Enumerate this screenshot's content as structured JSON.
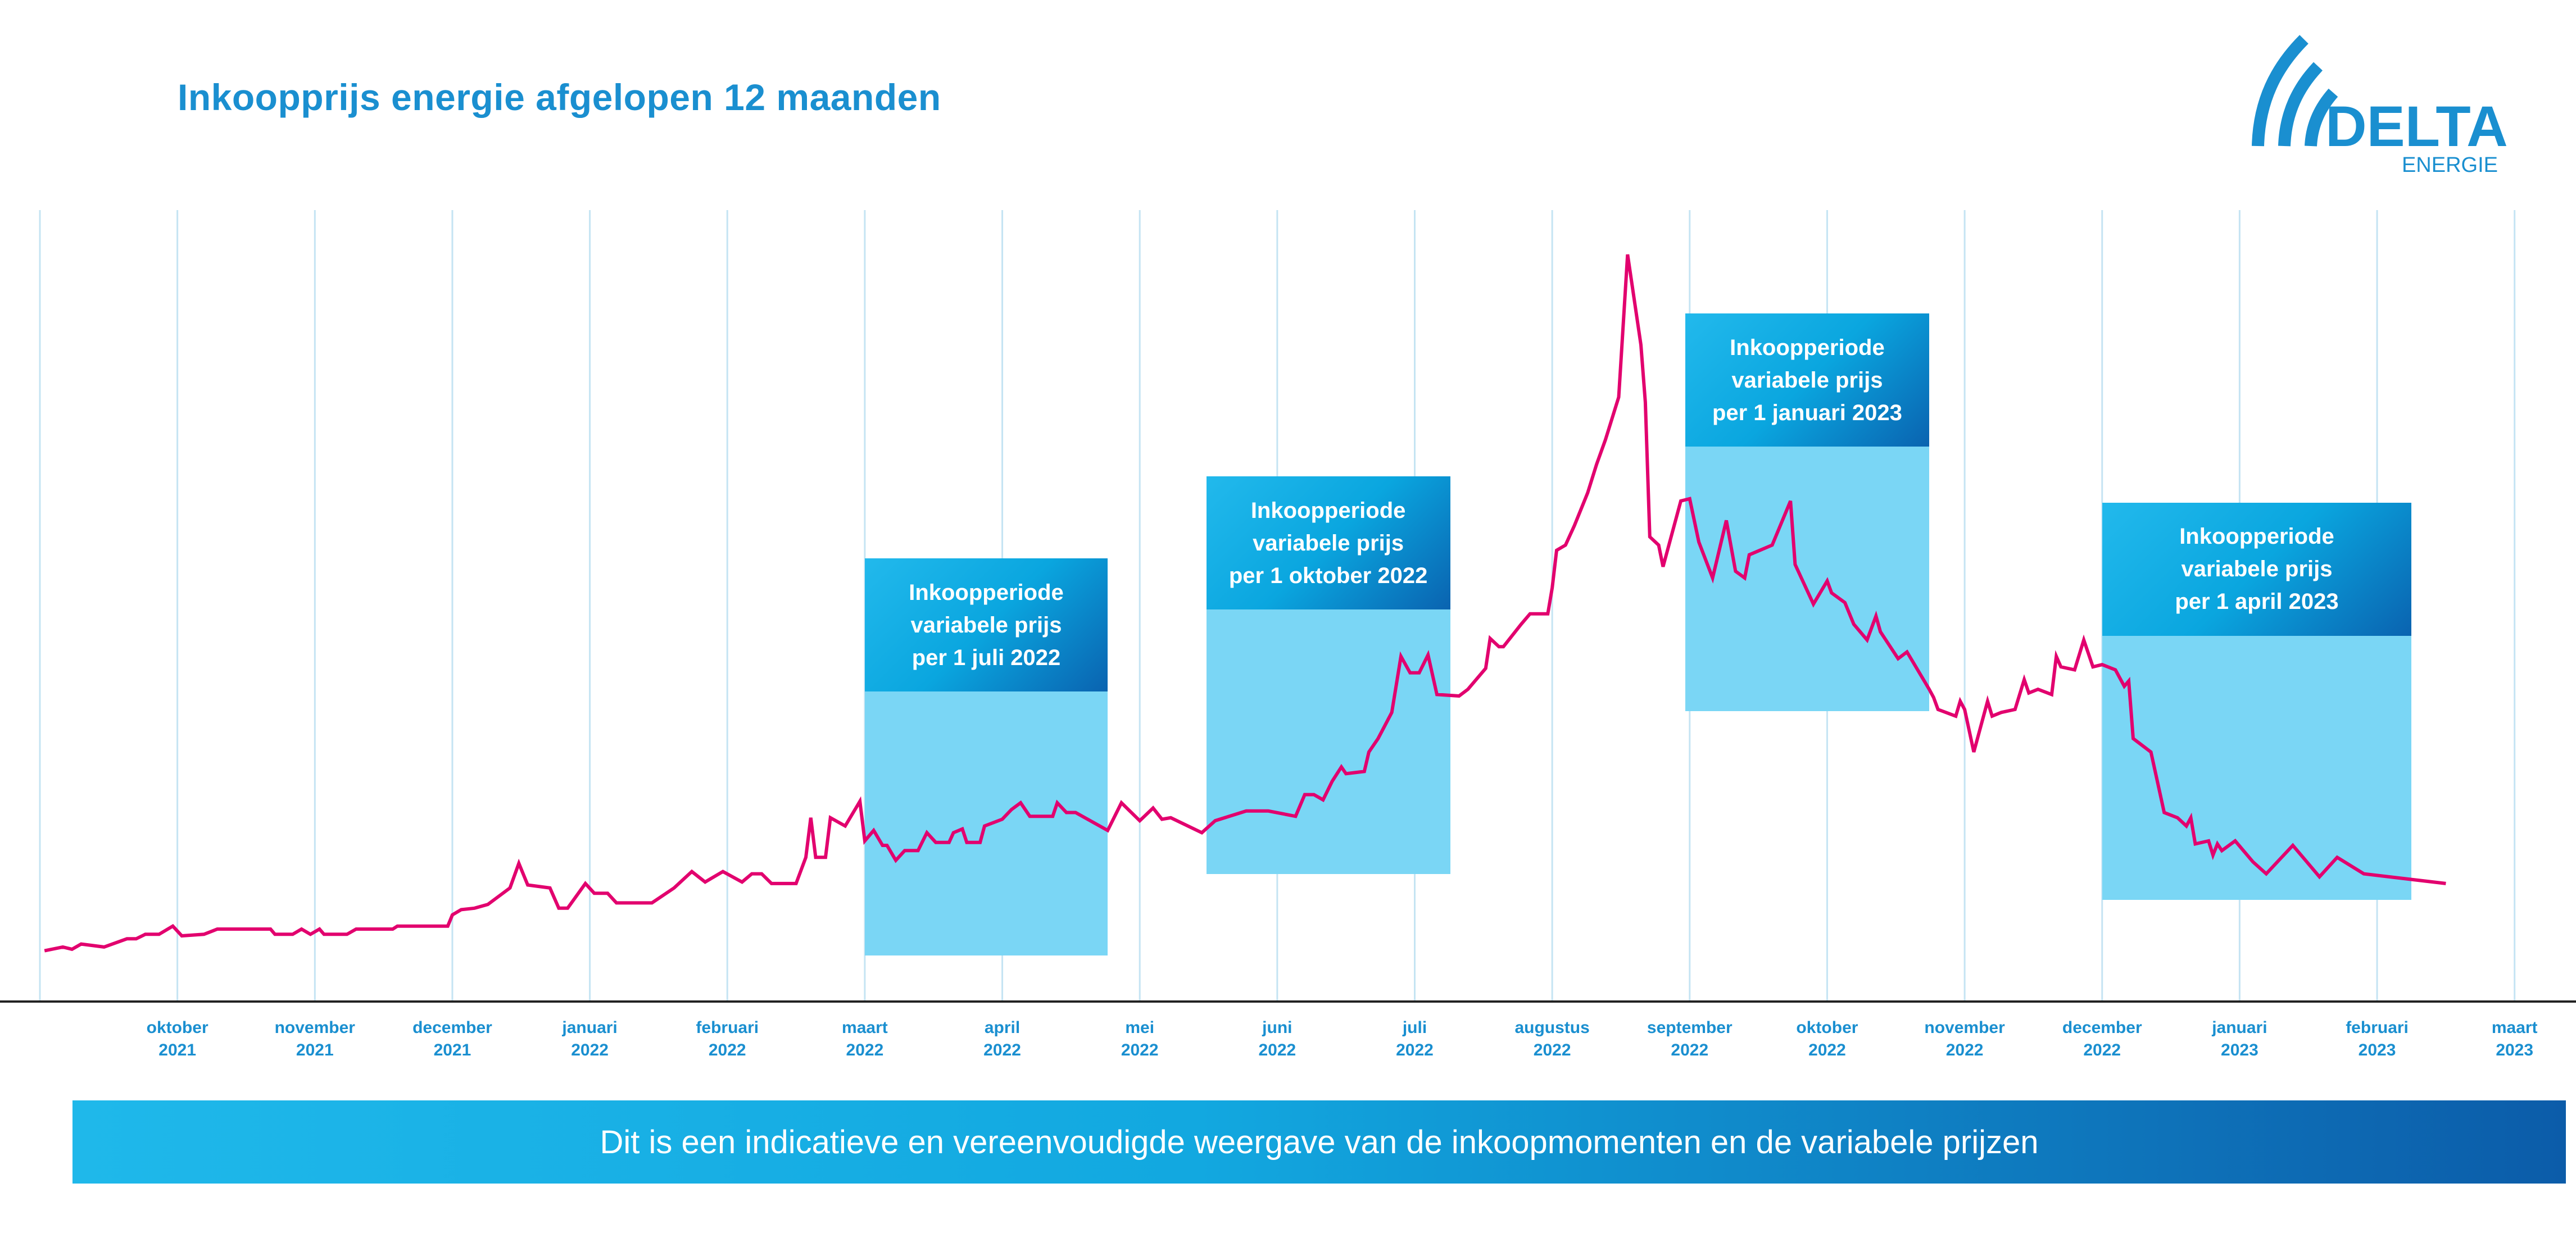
{
  "title": "Inkoopprijs energie afgelopen 12 maanden",
  "logo": {
    "brand": "DELTA",
    "sub": "ENERGIE",
    "color": "#1a8fd0"
  },
  "banner": "Dit is een indicatieve en vereenvoudigde weergave van de inkoopmomenten en de variabele prijzen",
  "chart_data": {
    "type": "line",
    "title": "Inkoopprijs energie afgelopen 12 maanden",
    "xlabel": "",
    "ylabel": "",
    "y_axis_visible": false,
    "ylim": [
      0,
      100
    ],
    "xlim": [
      "2021-09-01",
      "2023-03-01"
    ],
    "grid": "vertical monthly",
    "line_color": "#e2006e",
    "x_ticks": [
      {
        "date": "2021-10-01",
        "month": "oktober",
        "year": "2021"
      },
      {
        "date": "2021-11-01",
        "month": "november",
        "year": "2021"
      },
      {
        "date": "2021-12-01",
        "month": "december",
        "year": "2021"
      },
      {
        "date": "2022-01-01",
        "month": "januari",
        "year": "2022"
      },
      {
        "date": "2022-02-01",
        "month": "februari",
        "year": "2022"
      },
      {
        "date": "2022-03-01",
        "month": "maart",
        "year": "2022"
      },
      {
        "date": "2022-04-01",
        "month": "april",
        "year": "2022"
      },
      {
        "date": "2022-05-01",
        "month": "mei",
        "year": "2022"
      },
      {
        "date": "2022-06-01",
        "month": "juni",
        "year": "2022"
      },
      {
        "date": "2022-07-01",
        "month": "juli",
        "year": "2022"
      },
      {
        "date": "2022-08-01",
        "month": "augustus",
        "year": "2022"
      },
      {
        "date": "2022-09-01",
        "month": "september",
        "year": "2022"
      },
      {
        "date": "2022-10-01",
        "month": "oktober",
        "year": "2022"
      },
      {
        "date": "2022-11-01",
        "month": "november",
        "year": "2022"
      },
      {
        "date": "2022-12-01",
        "month": "december",
        "year": "2022"
      },
      {
        "date": "2023-01-01",
        "month": "januari",
        "year": "2023"
      },
      {
        "date": "2023-02-01",
        "month": "februari",
        "year": "2023"
      },
      {
        "date": "2023-03-01",
        "month": "maart",
        "year": "2023"
      }
    ],
    "series": [
      {
        "points": [
          [
            "2021-09-02",
            6.8
          ],
          [
            "2021-09-06",
            7.3
          ],
          [
            "2021-09-08",
            7.0
          ],
          [
            "2021-09-10",
            7.7
          ],
          [
            "2021-09-15",
            7.3
          ],
          [
            "2021-09-20",
            8.4
          ],
          [
            "2021-09-22",
            8.4
          ],
          [
            "2021-09-24",
            9.0
          ],
          [
            "2021-09-27",
            9.0
          ],
          [
            "2021-09-30",
            10.1
          ],
          [
            "2021-10-02",
            8.8
          ],
          [
            "2021-10-07",
            9.0
          ],
          [
            "2021-10-10",
            9.7
          ],
          [
            "2021-10-22",
            9.7
          ],
          [
            "2021-10-23",
            9.0
          ],
          [
            "2021-10-27",
            9.0
          ],
          [
            "2021-10-29",
            9.7
          ],
          [
            "2021-10-31",
            9.0
          ],
          [
            "2021-11-02",
            9.7
          ],
          [
            "2021-11-03",
            9.0
          ],
          [
            "2021-11-08",
            9.0
          ],
          [
            "2021-11-10",
            9.7
          ],
          [
            "2021-11-18",
            9.7
          ],
          [
            "2021-11-19",
            10.1
          ],
          [
            "2021-11-30",
            10.1
          ],
          [
            "2021-12-01",
            11.6
          ],
          [
            "2021-12-03",
            12.3
          ],
          [
            "2021-12-06",
            12.5
          ],
          [
            "2021-12-09",
            13.0
          ],
          [
            "2021-12-14",
            15.2
          ],
          [
            "2021-12-16",
            18.5
          ],
          [
            "2021-12-18",
            15.6
          ],
          [
            "2021-12-23",
            15.2
          ],
          [
            "2021-12-25",
            12.5
          ],
          [
            "2021-12-27",
            12.5
          ],
          [
            "2021-12-31",
            15.8
          ],
          [
            "2022-01-02",
            14.5
          ],
          [
            "2022-01-05",
            14.5
          ],
          [
            "2022-01-07",
            13.2
          ],
          [
            "2022-01-15",
            13.2
          ],
          [
            "2022-01-20",
            15.2
          ],
          [
            "2022-01-24",
            17.4
          ],
          [
            "2022-01-27",
            16.0
          ],
          [
            "2022-01-31",
            17.4
          ],
          [
            "2022-02-04",
            16.0
          ],
          [
            "2022-02-06",
            17.1
          ],
          [
            "2022-02-08",
            17.1
          ],
          [
            "2022-02-10",
            15.8
          ],
          [
            "2022-02-15",
            15.8
          ],
          [
            "2022-02-17",
            19.3
          ],
          [
            "2022-02-18",
            24.6
          ],
          [
            "2022-02-19",
            19.3
          ],
          [
            "2022-02-21",
            19.3
          ],
          [
            "2022-02-22",
            24.6
          ],
          [
            "2022-02-25",
            23.5
          ],
          [
            "2022-02-28",
            26.8
          ],
          [
            "2022-03-01",
            21.5
          ],
          [
            "2022-03-03",
            22.9
          ],
          [
            "2022-03-05",
            20.9
          ],
          [
            "2022-03-06",
            20.9
          ],
          [
            "2022-03-08",
            18.9
          ],
          [
            "2022-03-10",
            20.2
          ],
          [
            "2022-03-13",
            20.2
          ],
          [
            "2022-03-15",
            22.6
          ],
          [
            "2022-03-17",
            21.3
          ],
          [
            "2022-03-20",
            21.3
          ],
          [
            "2022-03-21",
            22.6
          ],
          [
            "2022-03-23",
            23.1
          ],
          [
            "2022-03-24",
            21.3
          ],
          [
            "2022-03-27",
            21.3
          ],
          [
            "2022-03-28",
            23.5
          ],
          [
            "2022-04-01",
            24.4
          ],
          [
            "2022-04-03",
            25.7
          ],
          [
            "2022-04-05",
            26.6
          ],
          [
            "2022-04-07",
            24.8
          ],
          [
            "2022-04-12",
            24.8
          ],
          [
            "2022-04-13",
            26.6
          ],
          [
            "2022-04-15",
            25.3
          ],
          [
            "2022-04-17",
            25.3
          ],
          [
            "2022-04-24",
            22.9
          ],
          [
            "2022-04-27",
            26.6
          ],
          [
            "2022-05-01",
            24.2
          ],
          [
            "2022-05-04",
            25.9
          ],
          [
            "2022-05-06",
            24.4
          ],
          [
            "2022-05-08",
            24.6
          ],
          [
            "2022-05-15",
            22.6
          ],
          [
            "2022-05-18",
            24.2
          ],
          [
            "2022-05-25",
            25.5
          ],
          [
            "2022-05-30",
            25.5
          ],
          [
            "2022-06-05",
            24.8
          ],
          [
            "2022-06-07",
            27.7
          ],
          [
            "2022-06-09",
            27.7
          ],
          [
            "2022-06-11",
            27.0
          ],
          [
            "2022-06-13",
            29.5
          ],
          [
            "2022-06-15",
            31.4
          ],
          [
            "2022-06-16",
            30.5
          ],
          [
            "2022-06-20",
            30.8
          ],
          [
            "2022-06-21",
            33.4
          ],
          [
            "2022-06-23",
            35.2
          ],
          [
            "2022-06-26",
            38.7
          ],
          [
            "2022-06-28",
            46.2
          ],
          [
            "2022-06-30",
            44.0
          ],
          [
            "2022-07-02",
            44.0
          ],
          [
            "2022-07-04",
            46.4
          ],
          [
            "2022-07-06",
            41.1
          ],
          [
            "2022-07-11",
            40.9
          ],
          [
            "2022-07-13",
            41.8
          ],
          [
            "2022-07-17",
            44.6
          ],
          [
            "2022-07-18",
            48.6
          ],
          [
            "2022-07-20",
            47.5
          ],
          [
            "2022-07-21",
            47.5
          ],
          [
            "2022-07-25",
            50.5
          ],
          [
            "2022-07-27",
            51.9
          ],
          [
            "2022-07-31",
            51.9
          ],
          [
            "2022-08-01",
            55.4
          ],
          [
            "2022-08-02",
            60.4
          ],
          [
            "2022-08-04",
            61.1
          ],
          [
            "2022-08-06",
            63.7
          ],
          [
            "2022-08-09",
            68.1
          ],
          [
            "2022-08-11",
            71.9
          ],
          [
            "2022-08-13",
            75.2
          ],
          [
            "2022-08-16",
            80.9
          ],
          [
            "2022-08-18",
            100
          ],
          [
            "2022-08-21",
            87.9
          ],
          [
            "2022-08-22",
            80.2
          ],
          [
            "2022-08-23",
            62.2
          ],
          [
            "2022-08-25",
            61.1
          ],
          [
            "2022-08-26",
            58.2
          ],
          [
            "2022-08-30",
            67.0
          ],
          [
            "2022-09-01",
            67.3
          ],
          [
            "2022-09-03",
            61.5
          ],
          [
            "2022-09-06",
            56.7
          ],
          [
            "2022-09-09",
            64.4
          ],
          [
            "2022-09-11",
            57.6
          ],
          [
            "2022-09-13",
            56.7
          ],
          [
            "2022-09-14",
            59.8
          ],
          [
            "2022-09-19",
            61.1
          ],
          [
            "2022-09-23",
            67.0
          ],
          [
            "2022-09-24",
            58.5
          ],
          [
            "2022-09-28",
            53.2
          ],
          [
            "2022-10-01",
            56.3
          ],
          [
            "2022-10-02",
            54.7
          ],
          [
            "2022-10-05",
            53.4
          ],
          [
            "2022-10-07",
            50.5
          ],
          [
            "2022-10-10",
            48.4
          ],
          [
            "2022-10-12",
            51.6
          ],
          [
            "2022-10-13",
            49.5
          ],
          [
            "2022-10-17",
            45.9
          ],
          [
            "2022-10-19",
            46.8
          ],
          [
            "2022-10-24",
            41.8
          ],
          [
            "2022-10-25",
            40.7
          ],
          [
            "2022-10-26",
            39.1
          ],
          [
            "2022-10-30",
            38.2
          ],
          [
            "2022-10-31",
            40.2
          ],
          [
            "2022-11-01",
            39.1
          ],
          [
            "2022-11-03",
            33.4
          ],
          [
            "2022-11-06",
            40.2
          ],
          [
            "2022-11-07",
            38.2
          ],
          [
            "2022-11-09",
            38.7
          ],
          [
            "2022-11-12",
            39.1
          ],
          [
            "2022-11-14",
            43.1
          ],
          [
            "2022-11-15",
            41.3
          ],
          [
            "2022-11-17",
            41.8
          ],
          [
            "2022-11-20",
            41.1
          ],
          [
            "2022-11-21",
            46.2
          ],
          [
            "2022-11-22",
            44.8
          ],
          [
            "2022-11-25",
            44.4
          ],
          [
            "2022-11-27",
            48.4
          ],
          [
            "2022-11-29",
            44.8
          ],
          [
            "2022-12-01",
            45.1
          ],
          [
            "2022-12-04",
            44.4
          ],
          [
            "2022-12-06",
            42.2
          ],
          [
            "2022-12-07",
            42.9
          ],
          [
            "2022-12-08",
            35.2
          ],
          [
            "2022-12-12",
            33.4
          ],
          [
            "2022-12-15",
            25.3
          ],
          [
            "2022-12-18",
            24.6
          ],
          [
            "2022-12-20",
            23.5
          ],
          [
            "2022-12-21",
            24.6
          ],
          [
            "2022-12-22",
            21.1
          ],
          [
            "2022-12-25",
            21.5
          ],
          [
            "2022-12-26",
            19.6
          ],
          [
            "2022-12-27",
            21.1
          ],
          [
            "2022-12-28",
            20.2
          ],
          [
            "2022-12-31",
            21.5
          ],
          [
            "2023-01-04",
            18.7
          ],
          [
            "2023-01-07",
            17.1
          ],
          [
            "2023-01-13",
            20.9
          ],
          [
            "2023-01-19",
            16.7
          ],
          [
            "2023-01-23",
            19.3
          ],
          [
            "2023-01-29",
            17.1
          ],
          [
            "2023-02-15",
            15.8
          ]
        ]
      }
    ],
    "annotations": [
      {
        "lines": [
          "Inkoopperiode",
          "variabele prijs",
          "per 1 juli 2022"
        ],
        "start": "2022-03-01",
        "end": "2022-04-24",
        "value_range": [
          6.2,
          59.3
        ]
      },
      {
        "lines": [
          "Inkoopperiode",
          "variabele prijs",
          "per 1 oktober 2022"
        ],
        "start": "2022-05-16",
        "end": "2022-07-09",
        "value_range": [
          17.1,
          70.3
        ]
      },
      {
        "lines": [
          "Inkoopperiode",
          "variabele prijs",
          "per 1 januari 2023"
        ],
        "start": "2022-08-31",
        "end": "2022-10-24",
        "value_range": [
          38.9,
          92.1
        ]
      },
      {
        "lines": [
          "Inkoopperiode",
          "variabele prijs",
          "per 1 april 2023"
        ],
        "start": "2022-12-01",
        "end": "2023-02-08",
        "value_range": [
          13.6,
          66.8
        ]
      }
    ],
    "colors": {
      "box_fill": "#7ad6f5",
      "box_header_start": "#22b9ec",
      "box_header_end": "#0a63b0",
      "gridline": "#c5e4f3",
      "axis": "#222222",
      "tick_label": "#1a8fd0"
    }
  }
}
